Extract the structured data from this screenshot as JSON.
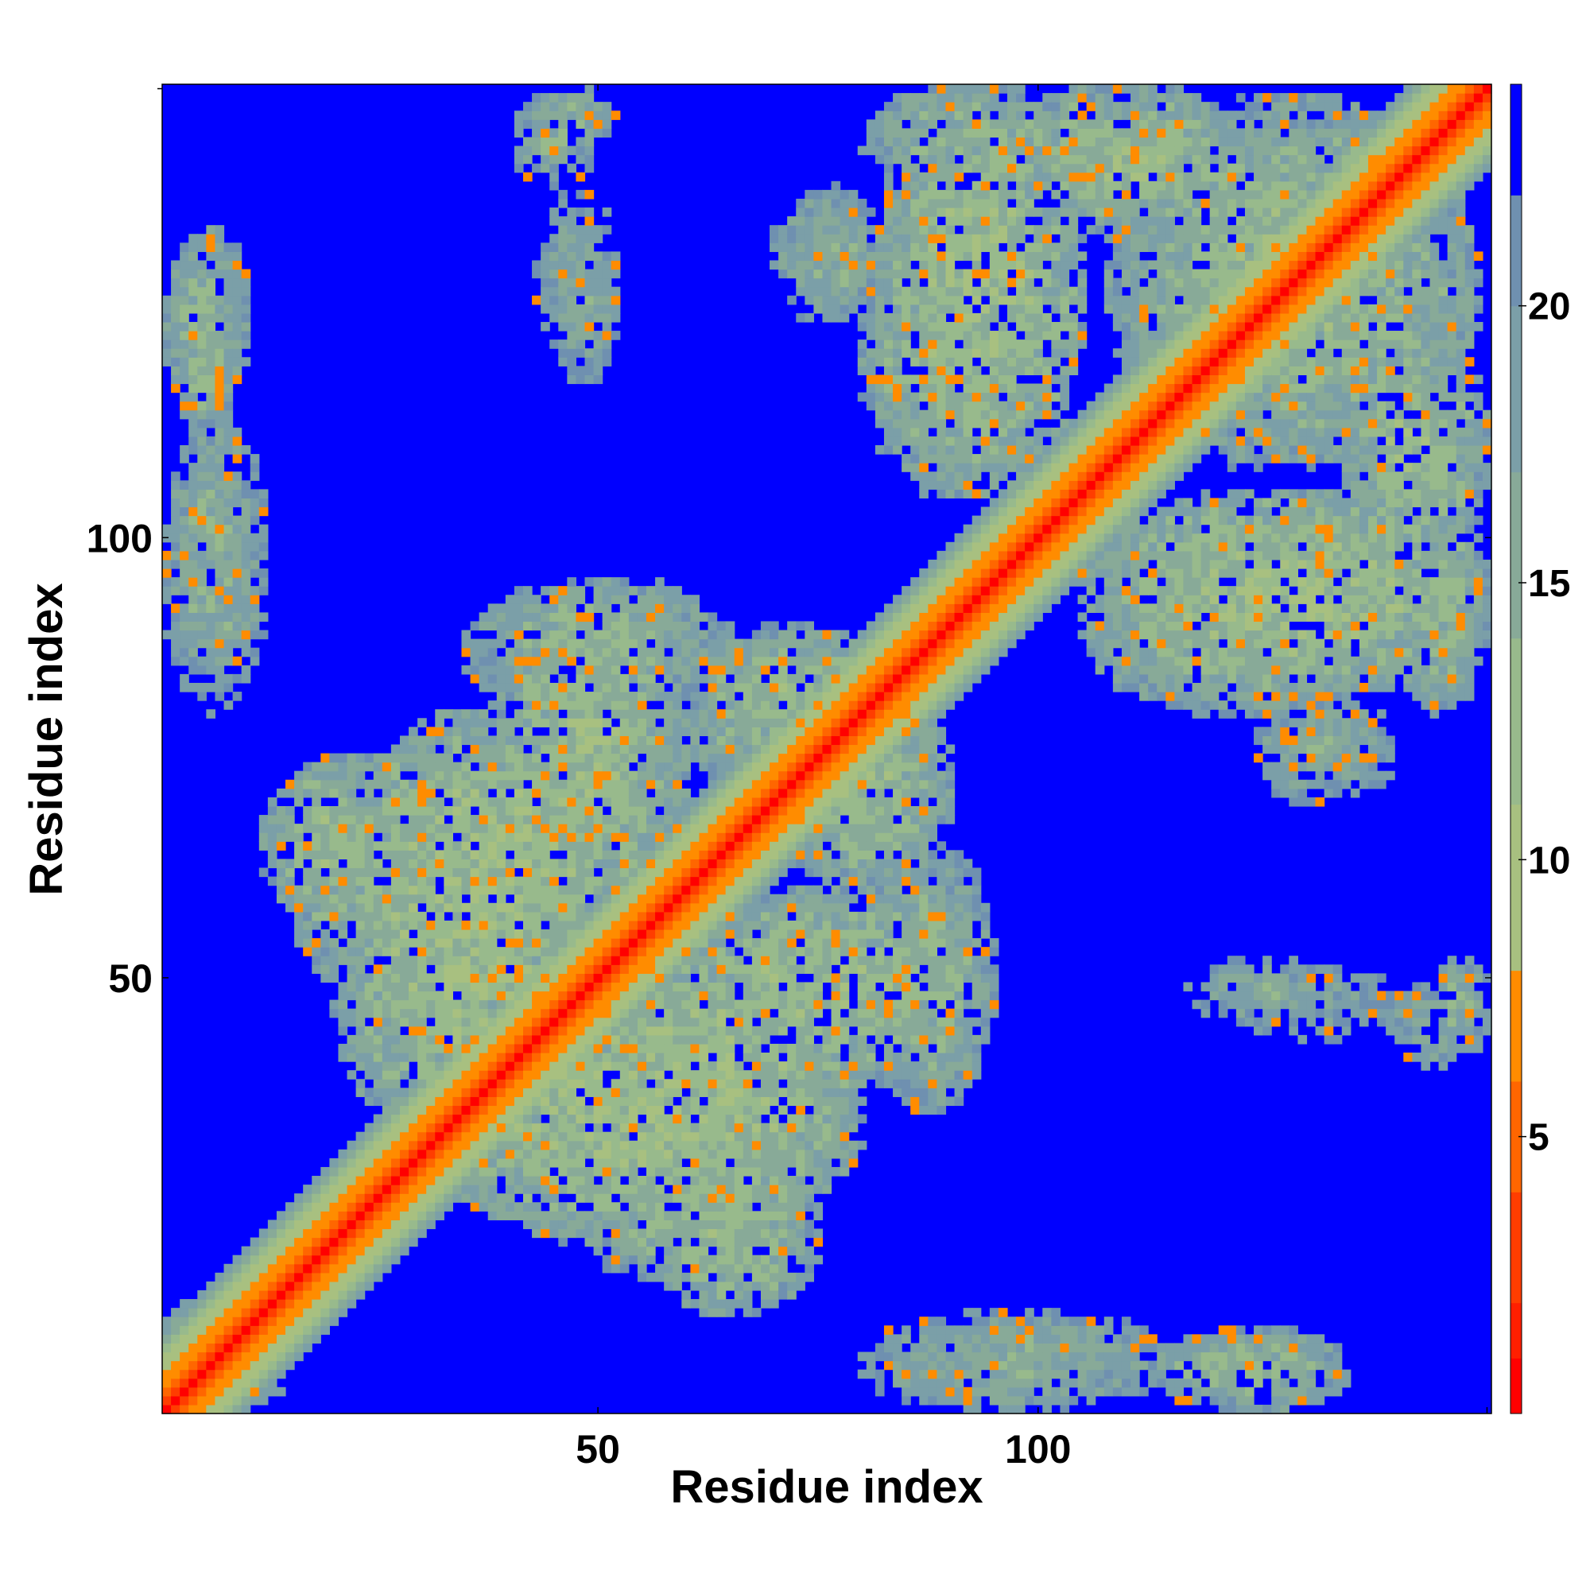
{
  "chart_data": {
    "type": "heatmap",
    "title": "",
    "xlabel": "Residue index",
    "ylabel": "Residue index",
    "n_residues": 151,
    "xlim": [
      1,
      151
    ],
    "ylim": [
      1,
      151
    ],
    "x_ticks": [
      50,
      100
    ],
    "y_ticks": [
      50,
      100
    ],
    "colorbar": {
      "range": [
        0,
        24
      ],
      "ticks": [
        5,
        10,
        15,
        20
      ],
      "bands": [
        {
          "from": 0,
          "to": 1,
          "color": "#ff0000"
        },
        {
          "from": 1,
          "to": 2,
          "color": "#ff1f00"
        },
        {
          "from": 2,
          "to": 4,
          "color": "#ff3d00"
        },
        {
          "from": 4,
          "to": 6,
          "color": "#ff6600"
        },
        {
          "from": 6,
          "to": 8,
          "color": "#ff8c00"
        },
        {
          "from": 8,
          "to": 11,
          "color": "#a8c080"
        },
        {
          "from": 11,
          "to": 14,
          "color": "#98ba8c"
        },
        {
          "from": 14,
          "to": 17,
          "color": "#88aa98"
        },
        {
          "from": 17,
          "to": 20,
          "color": "#7b9fa8"
        },
        {
          "from": 20,
          "to": 22,
          "color": "#6f90b0"
        },
        {
          "from": 22,
          "to": 24,
          "color": "#0000ff"
        }
      ]
    },
    "background_color": "#0000ff",
    "diagonal": {
      "from": 1,
      "to": 151,
      "value": 0
    },
    "contact_blocks": [
      {
        "x": [
          1,
          15
        ],
        "y": [
          1,
          15
        ],
        "value": 14
      },
      {
        "x": [
          12,
          30
        ],
        "y": [
          55,
          75
        ],
        "value": 13
      },
      {
        "x": [
          20,
          55
        ],
        "y": [
          45,
          80
        ],
        "value": 12
      },
      {
        "x": [
          30,
          75
        ],
        "y": [
          20,
          50
        ],
        "value": 12
      },
      {
        "x": [
          48,
          75
        ],
        "y": [
          15,
          32
        ],
        "value": 14
      },
      {
        "x": [
          55,
          95
        ],
        "y": [
          38,
          60
        ],
        "value": 13
      },
      {
        "x": [
          35,
          65
        ],
        "y": [
          80,
          95
        ],
        "value": 14
      },
      {
        "x": [
          60,
          85
        ],
        "y": [
          70,
          90
        ],
        "value": 13
      },
      {
        "x": [
          82,
          105
        ],
        "y": [
          105,
          151
        ],
        "value": 12
      },
      {
        "x": [
          95,
          125
        ],
        "y": [
          135,
          151
        ],
        "value": 13
      },
      {
        "x": [
          110,
          150
        ],
        "y": [
          108,
          150
        ],
        "value": 13
      },
      {
        "x": [
          105,
          140
        ],
        "y": [
          80,
          102
        ],
        "value": 13
      },
      {
        "x": [
          140,
          151
        ],
        "y": [
          80,
          105
        ],
        "value": 14
      },
      {
        "x": [
          125,
          140
        ],
        "y": [
          72,
          82
        ],
        "value": 15
      },
      {
        "x": [
          80,
          115
        ],
        "y": [
          1,
          12
        ],
        "value": 15
      },
      {
        "x": [
          115,
          135
        ],
        "y": [
          1,
          10
        ],
        "value": 14
      },
      {
        "x": [
          117,
          135
        ],
        "y": [
          45,
          52
        ],
        "value": 16
      },
      {
        "x": [
          145,
          151
        ],
        "y": [
          44,
          52
        ],
        "value": 15
      },
      {
        "x": [
          2,
          9
        ],
        "y": [
          112,
          130
        ],
        "value": 14
      },
      {
        "x": [
          2,
          7
        ],
        "y": [
          87,
          102
        ],
        "value": 16
      },
      {
        "x": [
          40,
          50
        ],
        "y": [
          140,
          151
        ],
        "value": 16
      },
      {
        "x": [
          43,
          52
        ],
        "y": [
          120,
          140
        ],
        "value": 17
      },
      {
        "x": [
          70,
          80
        ],
        "y": [
          125,
          140
        ],
        "value": 16
      }
    ]
  }
}
